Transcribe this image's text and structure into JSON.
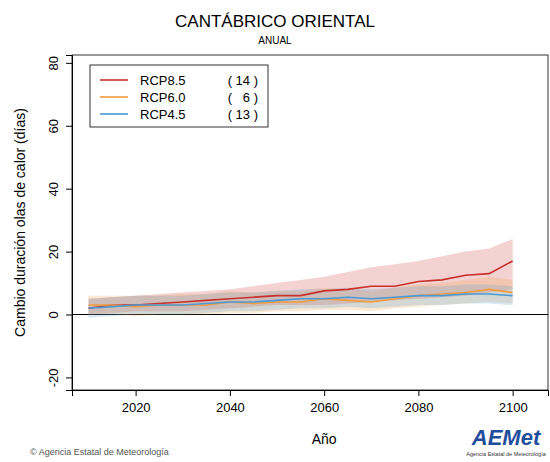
{
  "chart_data": {
    "type": "line",
    "title": "CANTÁBRICO ORIENTAL",
    "subtitle": "ANUAL",
    "x_label": "Año",
    "y_label": "Cambio duración olas de calor (días)",
    "annotations": [
      "© Agencia Estatal de Meteorología",
      "AEMet",
      "Agencia Estatal de Meteorología"
    ],
    "x": [
      2010,
      2015,
      2020,
      2025,
      2030,
      2035,
      2040,
      2045,
      2050,
      2055,
      2060,
      2065,
      2070,
      2075,
      2080,
      2085,
      2090,
      2095,
      2100
    ],
    "series": [
      {
        "name": "RCP8.5",
        "color": "#c8302c",
        "models": {
          "value": 14,
          "label": "( 14 )"
        },
        "values": [
          2,
          3,
          3,
          3.5,
          4,
          4.5,
          5,
          5.5,
          6,
          6,
          7.5,
          8,
          9,
          9,
          10.5,
          11,
          12.5,
          13,
          17
        ],
        "lower": [
          0,
          0.5,
          1,
          1,
          1,
          1.5,
          2,
          2.5,
          3,
          3,
          3,
          3.5,
          4,
          4.5,
          5,
          5.5,
          6,
          7,
          8
        ],
        "upper": [
          5,
          5.5,
          6,
          6.5,
          7,
          7.5,
          8,
          9,
          10,
          11,
          12,
          13.5,
          15,
          16,
          17,
          18.5,
          20,
          21,
          24
        ]
      },
      {
        "name": "RCP6.0",
        "color": "#f39a3c",
        "models": {
          "value": 6,
          "label": "(   6 )"
        },
        "values": [
          3,
          3,
          2.5,
          3,
          3,
          3,
          4,
          3.5,
          4,
          4,
          5,
          4.5,
          4,
          5,
          6,
          6.5,
          7,
          8,
          7
        ],
        "lower": [
          0,
          0,
          -0.5,
          0,
          0,
          0,
          0.5,
          0.5,
          1,
          1,
          1.5,
          1.5,
          1,
          2,
          2.5,
          3,
          3.5,
          4,
          3.5
        ],
        "upper": [
          6,
          6,
          6,
          6,
          6.5,
          6.5,
          7.5,
          7,
          7.5,
          7.5,
          8.5,
          8,
          7.5,
          8.5,
          9.5,
          10,
          11,
          12,
          11
        ]
      },
      {
        "name": "RCP4.5",
        "color": "#4a9ad6",
        "models": {
          "value": 13,
          "label": "( 13 )"
        },
        "values": [
          2,
          2.5,
          3,
          3,
          3,
          3.5,
          4,
          4,
          4.5,
          5,
          5,
          5.5,
          5,
          5.5,
          6,
          6,
          6.5,
          6.5,
          6
        ],
        "lower": [
          -1,
          -0.5,
          0,
          0,
          0,
          0.5,
          1,
          1,
          1.5,
          2,
          2,
          2.5,
          2,
          2.5,
          3,
          3,
          3.5,
          3.5,
          3
        ],
        "upper": [
          5,
          5.5,
          6,
          6,
          6,
          6.5,
          7,
          7,
          7.5,
          8,
          8,
          8.5,
          8,
          8.5,
          9,
          9,
          9.5,
          9.5,
          9
        ]
      }
    ],
    "xlim": [
      2006.5,
      2107.5
    ],
    "ylim": [
      -24,
      82.5
    ],
    "xticks": [
      2020,
      2040,
      2060,
      2080,
      2100
    ],
    "yticks": [
      -20,
      0,
      20,
      40,
      60,
      80
    ],
    "grid": false,
    "legend": "top-left"
  }
}
